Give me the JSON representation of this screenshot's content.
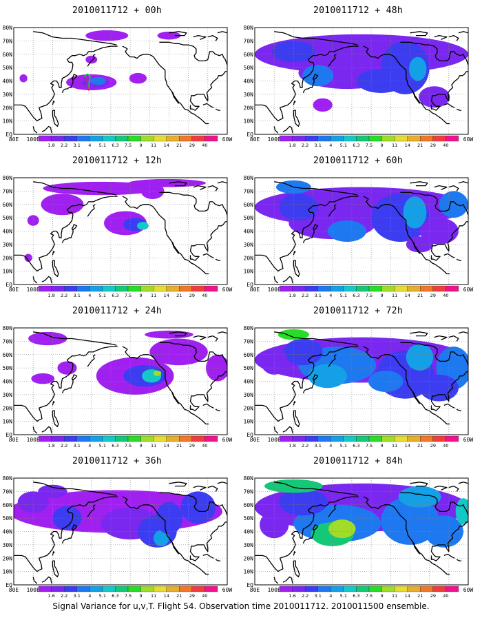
{
  "panels": [
    {
      "title": "2010011712 + 00h",
      "lead": 0
    },
    {
      "title": "2010011712 + 48h",
      "lead": 48
    },
    {
      "title": "2010011712 + 12h",
      "lead": 12
    },
    {
      "title": "2010011712 + 60h",
      "lead": 60
    },
    {
      "title": "2010011712 + 24h",
      "lead": 24
    },
    {
      "title": "2010011712 + 72h",
      "lead": 72
    },
    {
      "title": "2010011712 + 36h",
      "lead": 36
    },
    {
      "title": "2010011712 + 84h",
      "lead": 84
    }
  ],
  "lat_labels": [
    "80N",
    "70N",
    "60N",
    "50N",
    "40N",
    "30N",
    "20N",
    "10N",
    "EQ"
  ],
  "lon_labels": [
    "80E",
    "100E",
    "120E",
    "140E",
    "160E",
    "180",
    "160W",
    "140W",
    "120W",
    "100W",
    "80W",
    "60W"
  ],
  "colorbar": {
    "labels": [
      "1.8",
      "2.2",
      "3.1",
      "4",
      "5.1",
      "6.3",
      "7.5",
      "9",
      "11",
      "14",
      "21",
      "29",
      "40"
    ],
    "labels_last_row": [
      "1.6",
      "2.2",
      "3.1",
      "4",
      "5.1",
      "6.3",
      "7.5",
      "9",
      "11",
      "14",
      "21",
      "29",
      "40"
    ],
    "colors": [
      "#a020f0",
      "#7a28f0",
      "#3c3cf0",
      "#1e78f0",
      "#14a0e6",
      "#14c8c8",
      "#14c878",
      "#28dc28",
      "#a0dc28",
      "#e6dc32",
      "#e6af2d",
      "#f07828",
      "#f03c3c",
      "#f0148c"
    ]
  },
  "footer": "Signal Variance for u,v,T. Flight 54. Observation time 2010011712. 2010011500 ensemble."
}
